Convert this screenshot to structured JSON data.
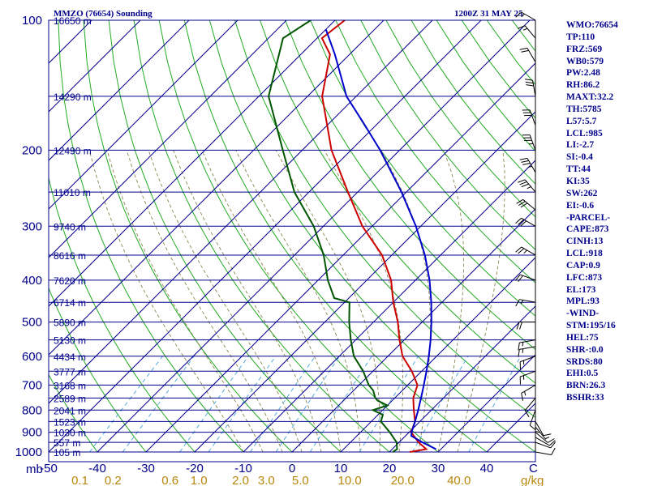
{
  "header": {
    "station": "MMZO (76654) Sounding",
    "time": "1200Z 31 MAY 25"
  },
  "indices": [
    "WMO:76654",
    "TP:110",
    "FRZ:569",
    "WB0:579",
    "PW:2.48",
    "RH:86.2",
    "MAXT:32.2",
    "TH:5785",
    "L57:5.7",
    "LCL:985",
    "LI:-2.7",
    "SI:-0.4",
    "TT:44",
    "KI:35",
    "SW:262",
    "EI:-0.6",
    "-PARCEL-",
    "CAPE:873",
    "CINH:13",
    "LCL:918",
    "CAP:0.9",
    "LFC:873",
    "EL:173",
    "MPL:93",
    "-WIND-",
    "STM:195/16",
    "HEL:75",
    "SHR-:0.0",
    "SRDS:80",
    "EHI:0.5",
    "BRN:26.3",
    "BSHR:33"
  ],
  "colors": {
    "isobar": "#00008b",
    "isotherm": "#00008b",
    "dry_adiabat": "#22aa22",
    "moist_adiabat": "#8b864e",
    "mixing_ratio": "#55aadd",
    "temperature": "#cc0000",
    "dewpoint": "#005500",
    "parcel": "#0000cc",
    "wind_barb": "#000000"
  },
  "icons": {
    "wind": "wind-barb-icon"
  },
  "chart_data": {
    "type": "skew-t",
    "pressure_axis_label": "mb",
    "temperature_unit": "C",
    "mixing_ratio_unit": "g/kg",
    "pressure_ticks": [
      100,
      200,
      300,
      400,
      500,
      600,
      700,
      800,
      900,
      1000
    ],
    "temperature_ticks": [
      "-50",
      "-40",
      "-30",
      "-20",
      "-10",
      "0",
      "10",
      "20",
      "30",
      "40"
    ],
    "mixing_ratio_ticks": [
      "0.1",
      "0.2",
      "0.6",
      "1.0",
      "2.0",
      "3.0",
      "5.0",
      "10.0",
      "20.0",
      "40.0"
    ],
    "mixing_ratio_values": [
      0.1,
      0.2,
      0.6,
      1.0,
      2.0,
      3.0,
      5.0,
      10.0,
      20.0,
      40.0
    ],
    "pressure_range": [
      1000,
      100
    ],
    "skew": "45 degrees",
    "heights": [
      {
        "p": 100,
        "label": "16650 m"
      },
      {
        "p": 150,
        "label": "14290 m"
      },
      {
        "p": 200,
        "label": "12490 m"
      },
      {
        "p": 250,
        "label": "11010 m"
      },
      {
        "p": 300,
        "label": "9740 m"
      },
      {
        "p": 350,
        "label": "8616 m"
      },
      {
        "p": 400,
        "label": "7620 m"
      },
      {
        "p": 450,
        "label": "6714 m"
      },
      {
        "p": 500,
        "label": "5890 m"
      },
      {
        "p": 550,
        "label": "5130 m"
      },
      {
        "p": 600,
        "label": "4434 m"
      },
      {
        "p": 650,
        "label": "3777 m"
      },
      {
        "p": 700,
        "label": "3168 m"
      },
      {
        "p": 750,
        "label": "2589 m"
      },
      {
        "p": 800,
        "label": "2041 m"
      },
      {
        "p": 850,
        "label": "1523 m"
      },
      {
        "p": 900,
        "label": "1030 m"
      },
      {
        "p": 950,
        "label": "557 m"
      },
      {
        "p": 1000,
        "label": "105 m"
      }
    ],
    "series": [
      {
        "key": "temperature",
        "points": [
          [
            1000,
            24.2
          ],
          [
            985,
            27
          ],
          [
            950,
            24
          ],
          [
            900,
            20.4
          ],
          [
            850,
            19
          ],
          [
            800,
            16.4
          ],
          [
            750,
            13.8
          ],
          [
            700,
            12
          ],
          [
            650,
            8
          ],
          [
            600,
            3
          ],
          [
            550,
            -1
          ],
          [
            500,
            -5
          ],
          [
            450,
            -10
          ],
          [
            400,
            -15
          ],
          [
            350,
            -22
          ],
          [
            300,
            -32
          ],
          [
            250,
            -42
          ],
          [
            200,
            -54
          ],
          [
            150,
            -67
          ],
          [
            120,
            -74
          ],
          [
            110,
            -79
          ],
          [
            100,
            -78
          ]
        ]
      },
      {
        "key": "dewpoint",
        "points": [
          [
            1000,
            20.7
          ],
          [
            985,
            21
          ],
          [
            950,
            19.5
          ],
          [
            900,
            16
          ],
          [
            850,
            12
          ],
          [
            820,
            11
          ],
          [
            800,
            8
          ],
          [
            780,
            10
          ],
          [
            760,
            7
          ],
          [
            750,
            6
          ],
          [
            720,
            4
          ],
          [
            700,
            2
          ],
          [
            650,
            -2
          ],
          [
            600,
            -7
          ],
          [
            550,
            -11
          ],
          [
            500,
            -15
          ],
          [
            450,
            -19
          ],
          [
            440,
            -23
          ],
          [
            400,
            -28
          ],
          [
            350,
            -34
          ],
          [
            300,
            -42
          ],
          [
            250,
            -53
          ],
          [
            200,
            -64
          ],
          [
            150,
            -78
          ],
          [
            110,
            -87
          ],
          [
            100,
            -85
          ]
        ]
      },
      {
        "key": "parcel",
        "points": [
          [
            985,
            29
          ],
          [
            950,
            24.8
          ],
          [
            918,
            21.2
          ],
          [
            900,
            20.5
          ],
          [
            850,
            19
          ],
          [
            800,
            17.3
          ],
          [
            750,
            15.4
          ],
          [
            700,
            13.3
          ],
          [
            650,
            11
          ],
          [
            600,
            8.4
          ],
          [
            550,
            5.4
          ],
          [
            500,
            1.9
          ],
          [
            450,
            -2.2
          ],
          [
            400,
            -7.1
          ],
          [
            350,
            -13.2
          ],
          [
            300,
            -21
          ],
          [
            250,
            -31
          ],
          [
            200,
            -44
          ],
          [
            173,
            -53
          ],
          [
            150,
            -62
          ],
          [
            120,
            -73
          ],
          [
            105,
            -80
          ]
        ]
      }
    ],
    "wind_barbs": [
      {
        "p": 1000,
        "dir": 100,
        "spd": 10
      },
      {
        "p": 950,
        "dir": 110,
        "spd": 10
      },
      {
        "p": 925,
        "dir": 120,
        "spd": 10
      },
      {
        "p": 900,
        "dir": 130,
        "spd": 10
      },
      {
        "p": 875,
        "dir": 140,
        "spd": 5
      },
      {
        "p": 850,
        "dir": 150,
        "spd": 10
      },
      {
        "p": 825,
        "dir": 180,
        "spd": 5
      },
      {
        "p": 800,
        "dir": 200,
        "spd": 10
      },
      {
        "p": 750,
        "dir": 220,
        "spd": 10
      },
      {
        "p": 700,
        "dir": 240,
        "spd": 15
      },
      {
        "p": 650,
        "dir": 250,
        "spd": 15
      },
      {
        "p": 600,
        "dir": 250,
        "spd": 15
      },
      {
        "p": 570,
        "dir": 260,
        "spd": 15
      },
      {
        "p": 550,
        "dir": 260,
        "spd": 15
      },
      {
        "p": 500,
        "dir": 270,
        "spd": 20
      },
      {
        "p": 450,
        "dir": 280,
        "spd": 15
      },
      {
        "p": 400,
        "dir": 290,
        "spd": 20
      },
      {
        "p": 350,
        "dir": 300,
        "spd": 25
      },
      {
        "p": 300,
        "dir": 300,
        "spd": 30
      },
      {
        "p": 275,
        "dir": 310,
        "spd": 30
      },
      {
        "p": 250,
        "dir": 320,
        "spd": 35
      },
      {
        "p": 225,
        "dir": 330,
        "spd": 35
      },
      {
        "p": 200,
        "dir": 340,
        "spd": 35
      },
      {
        "p": 175,
        "dir": 340,
        "spd": 30
      },
      {
        "p": 150,
        "dir": 350,
        "spd": 30
      },
      {
        "p": 125,
        "dir": 330,
        "spd": 20
      },
      {
        "p": 110,
        "dir": 320,
        "spd": 15
      },
      {
        "p": 100,
        "dir": 300,
        "spd": 15
      }
    ]
  }
}
